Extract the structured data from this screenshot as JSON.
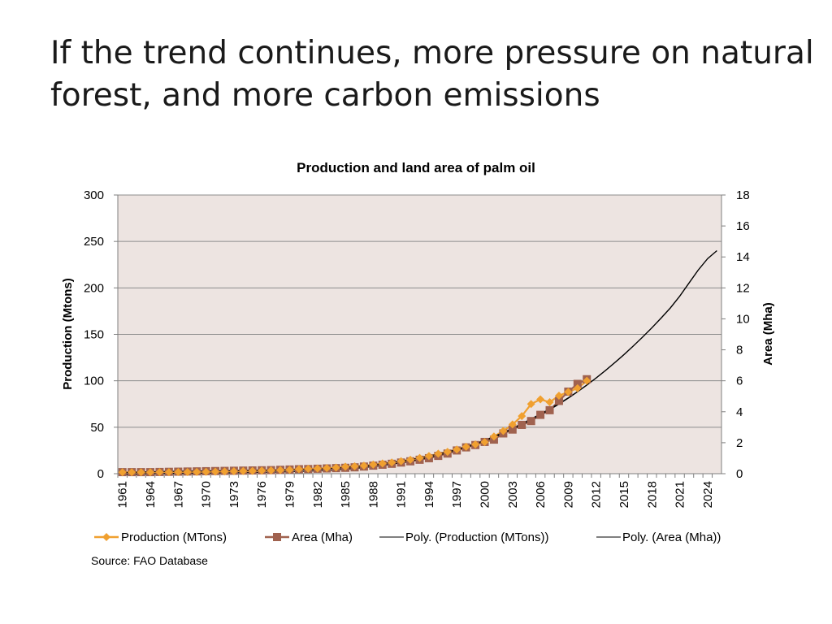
{
  "slide": {
    "title": "If the trend continues, more pressure on natural forest, and more carbon emissions"
  },
  "source_note": "Source: FAO Database",
  "colors": {
    "plot_background": "#ede4e1",
    "gridline": "#8c8c8c",
    "production": "#f0a030",
    "area": "#a0624f",
    "trendline": "#000000"
  },
  "chart_data": {
    "type": "line",
    "title": "Production and land area of palm oil",
    "xlabel": "",
    "ylabel": "Production (Mtons)",
    "y2label": "Area (Mha)",
    "x_ticks": [
      "1961",
      "1964",
      "1967",
      "1970",
      "1973",
      "1976",
      "1979",
      "1982",
      "1985",
      "1988",
      "1991",
      "1994",
      "1997",
      "2000",
      "2003",
      "2006",
      "2009",
      "2012",
      "2015",
      "2018",
      "2021",
      "2024"
    ],
    "x_range": [
      1961,
      2025
    ],
    "ylim": [
      0,
      300
    ],
    "y_ticks": [
      0,
      50,
      100,
      150,
      200,
      250,
      300
    ],
    "y2lim": [
      0,
      18
    ],
    "y2_ticks": [
      0,
      2,
      4,
      6,
      8,
      10,
      12,
      14,
      16,
      18
    ],
    "grid": true,
    "legend_position": "bottom",
    "series": [
      {
        "name": "Production (MTons)",
        "axis": "left",
        "marker": "diamond",
        "x": [
          1961,
          1962,
          1963,
          1964,
          1965,
          1966,
          1967,
          1968,
          1969,
          1970,
          1971,
          1972,
          1973,
          1974,
          1975,
          1976,
          1977,
          1978,
          1979,
          1980,
          1981,
          1982,
          1983,
          1984,
          1985,
          1986,
          1987,
          1988,
          1989,
          1990,
          1991,
          1992,
          1993,
          1994,
          1995,
          1996,
          1997,
          1998,
          1999,
          2000,
          2001,
          2002,
          2003,
          2004,
          2005,
          2006,
          2007,
          2008,
          2009,
          2010,
          2011
        ],
        "y": [
          1.5,
          1.5,
          1.5,
          1.5,
          1.6,
          1.6,
          1.7,
          1.8,
          1.9,
          2.0,
          2.2,
          2.4,
          2.6,
          2.8,
          3.0,
          3.3,
          3.5,
          3.8,
          4.2,
          4.8,
          5.2,
          5.6,
          6.0,
          6.6,
          7.5,
          8.0,
          8.6,
          9.8,
          11.0,
          12.0,
          13.5,
          15.0,
          17.0,
          19.0,
          21.5,
          23.5,
          26.0,
          29.0,
          31.5,
          34.0,
          40.0,
          46.0,
          53.0,
          62.0,
          75.0,
          80.0,
          77.0,
          84.0,
          88.0,
          92.0,
          100.0
        ]
      },
      {
        "name": "Area (Mha)",
        "axis": "right",
        "marker": "square",
        "x": [
          1961,
          1962,
          1963,
          1964,
          1965,
          1966,
          1967,
          1968,
          1969,
          1970,
          1971,
          1972,
          1973,
          1974,
          1975,
          1976,
          1977,
          1978,
          1979,
          1980,
          1981,
          1982,
          1983,
          1984,
          1985,
          1986,
          1987,
          1988,
          1989,
          1990,
          1991,
          1992,
          1993,
          1994,
          1995,
          1996,
          1997,
          1998,
          1999,
          2000,
          2001,
          2002,
          2003,
          2004,
          2005,
          2006,
          2007,
          2008,
          2009,
          2010,
          2011
        ],
        "y": [
          0.1,
          0.1,
          0.1,
          0.1,
          0.11,
          0.12,
          0.13,
          0.14,
          0.15,
          0.16,
          0.17,
          0.18,
          0.19,
          0.2,
          0.21,
          0.22,
          0.23,
          0.25,
          0.27,
          0.29,
          0.3,
          0.32,
          0.34,
          0.36,
          0.38,
          0.41,
          0.46,
          0.52,
          0.58,
          0.64,
          0.72,
          0.8,
          0.9,
          1.0,
          1.15,
          1.3,
          1.5,
          1.7,
          1.85,
          2.05,
          2.2,
          2.6,
          2.85,
          3.15,
          3.4,
          3.8,
          4.1,
          4.7,
          5.3,
          5.8,
          6.1
        ]
      },
      {
        "name": "Poly. (Production (MTons))",
        "axis": "left",
        "style": "trendline",
        "x": [
          1961,
          1965,
          1970,
          1975,
          1980,
          1985,
          1990,
          1995,
          2000,
          2005,
          2010,
          2015,
          2020,
          2025
        ],
        "y": [
          -0.8,
          0.2,
          0.6,
          1.3,
          2.4,
          4.8,
          10.2,
          19.7,
          35.1,
          57.6,
          88.1,
          128.1,
          178.6,
          240.0
        ]
      },
      {
        "name": "Poly. (Area (Mha))",
        "axis": "right",
        "style": "trendline",
        "x": [
          1961,
          1965,
          1970,
          1975,
          1980,
          1985,
          1990,
          1995,
          2000,
          2005,
          2010,
          2015,
          2020,
          2025
        ],
        "y": [
          0.07,
          0.14,
          0.18,
          0.21,
          0.25,
          0.4,
          0.73,
          1.27,
          2.16,
          3.54,
          5.3,
          7.7,
          10.7,
          14.4
        ]
      }
    ]
  }
}
